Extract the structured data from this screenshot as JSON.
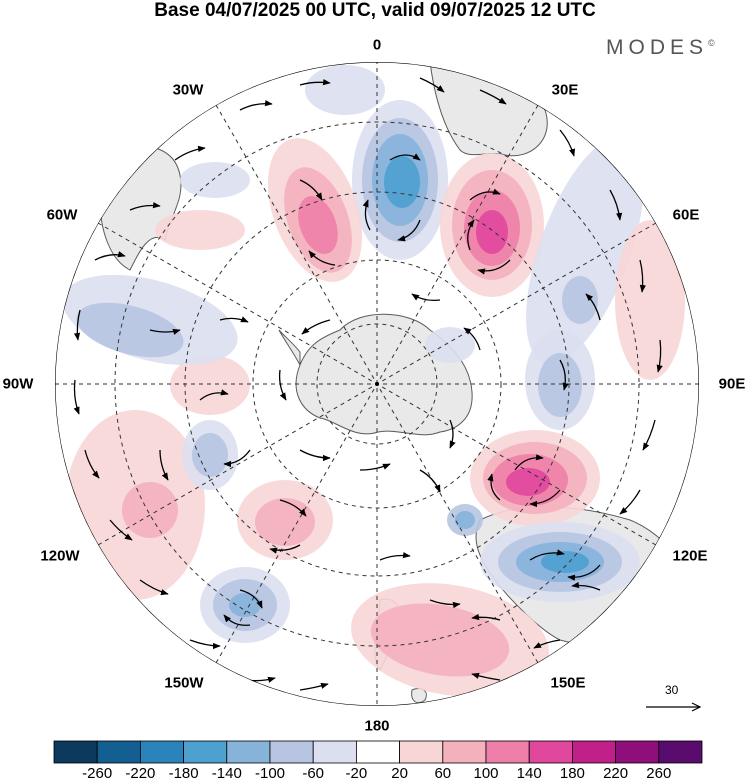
{
  "title": "Base 04/07/2025 00 UTC, valid 09/07/2025 12 UTC",
  "brand": "MODES",
  "brand_mark": "©",
  "longitude_labels": {
    "lon_0": "0",
    "lon_30e": "30E",
    "lon_60e": "60E",
    "lon_90e": "90E",
    "lon_120e": "120E",
    "lon_150e": "150E",
    "lon_180": "180",
    "lon_150w": "150W",
    "lon_120w": "120W",
    "lon_90w": "90W",
    "lon_60w": "60W",
    "lon_30w": "30W"
  },
  "reference_vector": "30",
  "colorbar": {
    "ticks": [
      "-260",
      "-220",
      "-180",
      "-140",
      "-100",
      "-60",
      "-20",
      "20",
      "60",
      "100",
      "140",
      "180",
      "220",
      "260"
    ],
    "colors": [
      "#0b3a5e",
      "#135f91",
      "#2a84bc",
      "#4ea0cf",
      "#86b3da",
      "#b7c5e2",
      "#dcdff0",
      "#ffffff",
      "#f8d6d7",
      "#f4b0bd",
      "#ee7fa8",
      "#e0479d",
      "#c11f8a",
      "#8f0e7c",
      "#5a0b6e"
    ]
  },
  "map": {
    "projection": "south polar stereographic",
    "land_color": "#e9e9e9",
    "coast_color": "#5a5a5a",
    "anomalies": [
      {
        "region": "south of Africa / 0-20E",
        "sign": "negative",
        "peak_class": "-140"
      },
      {
        "region": "near 30E",
        "sign": "positive",
        "peak_class": "180"
      },
      {
        "region": "near 15W",
        "sign": "positive",
        "peak_class": "140"
      },
      {
        "region": "south of Australia ~105E",
        "sign": "positive",
        "peak_class": "180"
      },
      {
        "region": "southern Australia ~120E",
        "sign": "negative",
        "peak_class": "-140"
      },
      {
        "region": "south of New Zealand ~150E",
        "sign": "positive",
        "peak_class": "100"
      },
      {
        "region": "~140W",
        "sign": "negative",
        "peak_class": "-140"
      },
      {
        "region": "~120W",
        "sign": "positive",
        "peak_class": "60"
      }
    ]
  }
}
